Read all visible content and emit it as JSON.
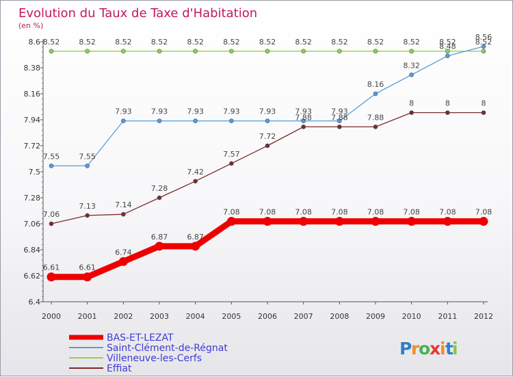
{
  "chart_data": {
    "type": "line",
    "title": "Evolution du Taux de Taxe d'Habitation",
    "subtitle": "(en %)",
    "x": [
      "2000",
      "2001",
      "2002",
      "2003",
      "2004",
      "2005",
      "2006",
      "2007",
      "2008",
      "2009",
      "2010",
      "2011",
      "2012"
    ],
    "yticks": [
      "6.4",
      "6.62",
      "6.84",
      "7.06",
      "7.28",
      "7.5",
      "7.72",
      "7.94",
      "8.16",
      "8.38",
      "8.6"
    ],
    "ylim": [
      6.4,
      8.6
    ],
    "grid": false,
    "legend_position": "bottom-left",
    "series": [
      {
        "name": "BAS-ET-LEZAT",
        "color": "#ee0000",
        "values": [
          6.61,
          6.61,
          6.74,
          6.87,
          6.87,
          7.08,
          7.08,
          7.08,
          7.08,
          7.08,
          7.08,
          7.08,
          7.08
        ],
        "labels": [
          "6.61",
          "6.61",
          "6.74",
          "6.87",
          "6.87",
          "7.08",
          "7.08",
          "7.08",
          "7.08",
          "7.08",
          "7.08",
          "7.08",
          "7.08"
        ]
      },
      {
        "name": "Saint-Clément-de-Régnat",
        "color": "#5b9bd5",
        "values": [
          7.55,
          7.55,
          7.93,
          7.93,
          7.93,
          7.93,
          7.93,
          7.93,
          7.93,
          8.16,
          8.32,
          8.48,
          8.56
        ],
        "labels": [
          "7.55",
          "7.55",
          "7.93",
          "7.93",
          "7.93",
          "7.93",
          "7.93",
          "7.93",
          "7.93",
          "8.16",
          "8.32",
          "8.48",
          "8.56"
        ]
      },
      {
        "name": "Villeneuve-les-Cerfs",
        "color": "#92d050",
        "values": [
          8.52,
          8.52,
          8.52,
          8.52,
          8.52,
          8.52,
          8.52,
          8.52,
          8.52,
          8.52,
          8.52,
          8.52,
          8.52
        ],
        "labels": [
          "8.52",
          "8.52",
          "8.52",
          "8.52",
          "8.52",
          "8.52",
          "8.52",
          "8.52",
          "8.52",
          "8.52",
          "8.52",
          "8.52",
          "8.52"
        ]
      },
      {
        "name": "Effiat",
        "color": "#7b2a2a",
        "values": [
          7.06,
          7.13,
          7.14,
          7.28,
          7.42,
          7.57,
          7.72,
          7.88,
          7.88,
          7.88,
          8.0,
          8.0,
          8.0
        ],
        "labels": [
          "7.06",
          "7.13",
          "7.14",
          "7.28",
          "7.42",
          "7.57",
          "7.72",
          "7.88",
          "7.88",
          "7.88",
          "8",
          "8",
          "8"
        ]
      }
    ]
  },
  "logo": {
    "text": "Proxiti",
    "letters": [
      "P",
      "r",
      "o",
      "x",
      "i",
      "t",
      "i"
    ]
  }
}
